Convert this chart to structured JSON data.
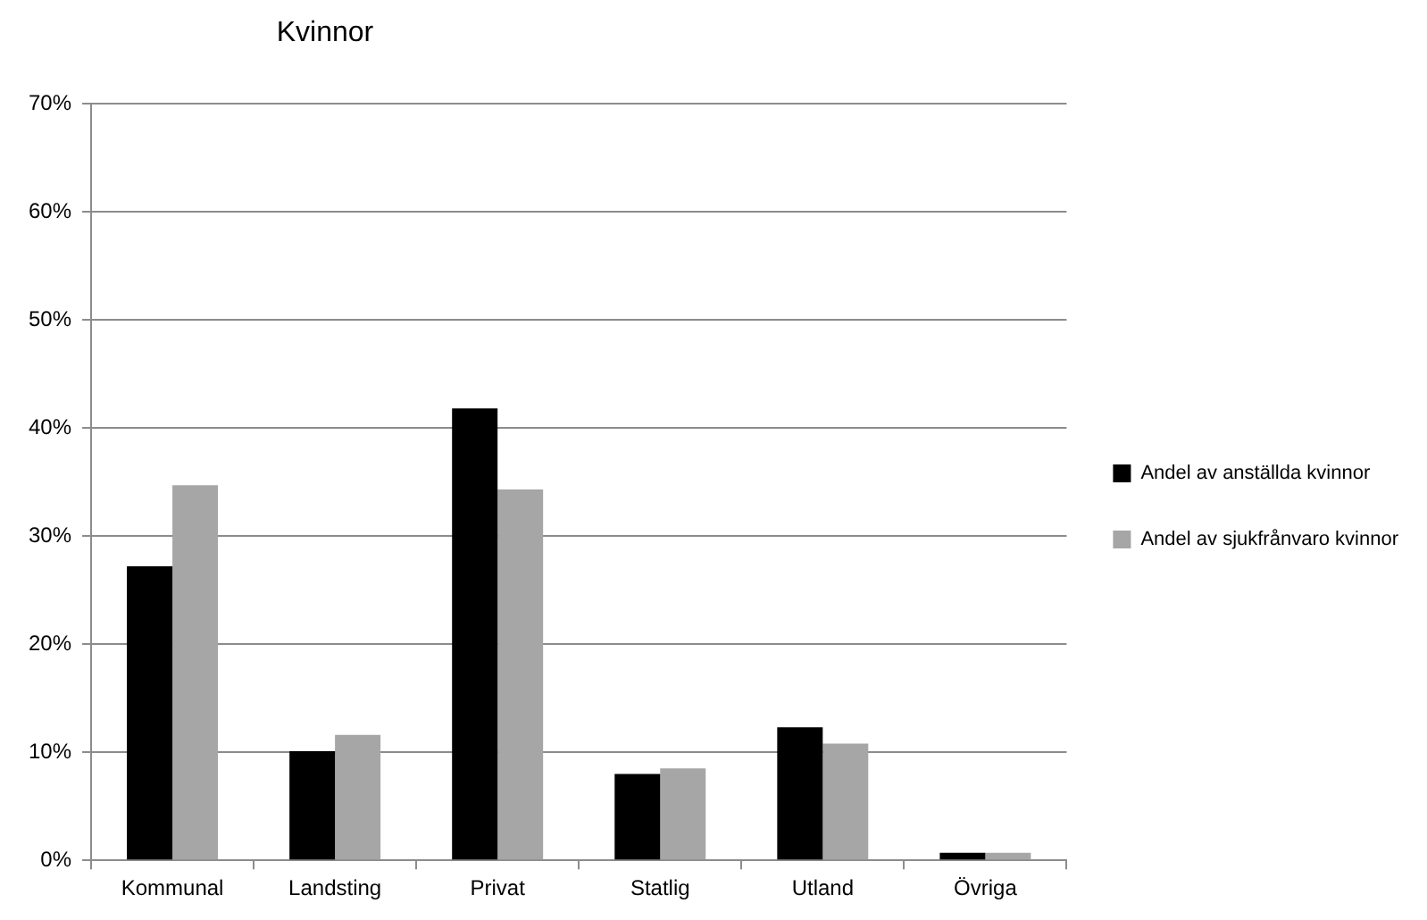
{
  "chart_data": {
    "type": "bar",
    "title": "Kvinnor",
    "categories": [
      "Kommunal",
      "Landsting",
      "Privat",
      "Statlig",
      "Utland",
      "Övriga"
    ],
    "series": [
      {
        "name": "Andel av anställda kvinnor",
        "color": "#000000",
        "values": [
          27.2,
          10.1,
          41.8,
          8.0,
          12.3,
          0.7
        ]
      },
      {
        "name": "Andel av sjukfrånvaro kvinnor",
        "color": "#a6a6a6",
        "values": [
          34.7,
          11.6,
          34.3,
          8.5,
          10.8,
          0.7
        ]
      }
    ],
    "ylim": [
      0,
      70
    ],
    "yticks": [
      {
        "value": 0,
        "label": "0%"
      },
      {
        "value": 10,
        "label": "10%"
      },
      {
        "value": 20,
        "label": "20%"
      },
      {
        "value": 30,
        "label": "30%"
      },
      {
        "value": 40,
        "label": "40%"
      },
      {
        "value": 50,
        "label": "50%"
      },
      {
        "value": 60,
        "label": "60%"
      },
      {
        "value": 70,
        "label": "70%"
      }
    ],
    "grid": "y",
    "legend": "right"
  }
}
